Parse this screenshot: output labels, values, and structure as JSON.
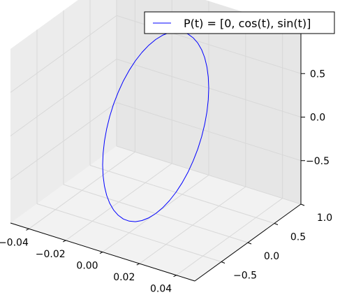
{
  "chart_data": {
    "type": "line",
    "projection": "3d",
    "legend": {
      "placement": "top-right",
      "label": "P(t) = [0, cos(t), sin(t)]"
    },
    "series": [
      {
        "name": "P(t) = [0, cos(t), sin(t)]",
        "color": "#0000ff",
        "x": [
          0,
          0,
          0,
          0,
          0,
          0,
          0,
          0,
          0,
          0,
          0,
          0,
          0,
          0,
          0,
          0,
          0,
          0,
          0,
          0,
          0,
          0,
          0,
          0,
          0,
          0,
          0,
          0,
          0,
          0,
          0,
          0,
          0,
          0,
          0,
          0,
          0,
          0,
          0,
          0,
          0,
          0,
          0,
          0,
          0,
          0,
          0,
          0,
          0
        ],
        "y": [
          1,
          0.9914,
          0.9659,
          0.9239,
          0.866,
          0.7934,
          0.7071,
          0.6088,
          0.5,
          0.3827,
          0.2588,
          0.1305,
          0,
          -0.1305,
          -0.2588,
          -0.3827,
          -0.5,
          -0.6088,
          -0.7071,
          -0.7934,
          -0.866,
          -0.9239,
          -0.9659,
          -0.9914,
          -1,
          -0.9914,
          -0.9659,
          -0.9239,
          -0.866,
          -0.7934,
          -0.7071,
          -0.6088,
          -0.5,
          -0.3827,
          -0.2588,
          -0.1305,
          0,
          0.1305,
          0.2588,
          0.3827,
          0.5,
          0.6088,
          0.7071,
          0.7934,
          0.866,
          0.9239,
          0.9659,
          0.9914,
          1
        ],
        "z": [
          0,
          0.1305,
          0.2588,
          0.3827,
          0.5,
          0.6088,
          0.7071,
          0.7934,
          0.866,
          0.9239,
          0.9659,
          0.9914,
          1,
          0.9914,
          0.9659,
          0.9239,
          0.866,
          0.7934,
          0.7071,
          0.6088,
          0.5,
          0.3827,
          0.2588,
          0.1305,
          0,
          -0.1305,
          -0.2588,
          -0.3827,
          -0.5,
          -0.6088,
          -0.7071,
          -0.7934,
          -0.866,
          -0.9239,
          -0.9659,
          -0.9914,
          -1,
          -0.9914,
          -0.9659,
          -0.9239,
          -0.866,
          -0.7934,
          -0.7071,
          -0.6088,
          -0.5,
          -0.3827,
          -0.2588,
          -0.1305,
          0
        ]
      }
    ],
    "xlim": [
      -0.05,
      0.05
    ],
    "ylim": [
      -1,
      1
    ],
    "zlim": [
      -1,
      1
    ],
    "xticks": [
      -0.04,
      -0.02,
      0.0,
      0.02,
      0.04
    ],
    "xticklabels": [
      "−0.04",
      "−0.02",
      "0.00",
      "0.02",
      "0.04"
    ],
    "yticks": [
      -0.5,
      0.0,
      0.5,
      1.0
    ],
    "yticklabels": [
      "−0.5",
      "0.0",
      "0.5",
      "1.0"
    ],
    "zticks": [
      -0.5,
      0.0,
      0.5
    ],
    "zticklabels": [
      "−0.5",
      "0.0",
      "0.5"
    ],
    "grid": true,
    "xlabel": "",
    "ylabel": "",
    "zlabel": "",
    "title": ""
  }
}
